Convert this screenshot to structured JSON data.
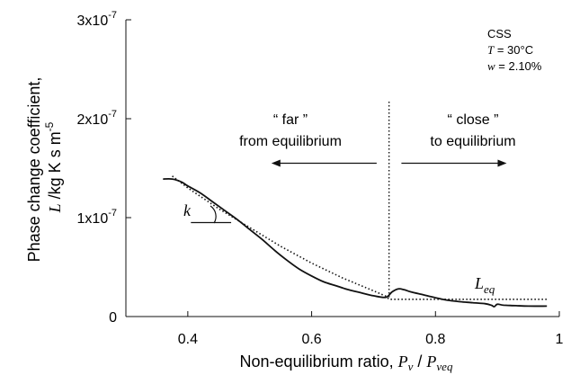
{
  "chart_data": {
    "type": "line",
    "xlabel_prefix": "Non-equilibrium ratio, ",
    "xlabel_num": "P",
    "xlabel_num_sub": "v",
    "xlabel_sep": " / ",
    "xlabel_den": "P",
    "xlabel_den_sub": "veq",
    "ylabel_line1": "Phase change coefficient,",
    "ylabel_line2_var": "L",
    "ylabel_line2_rest": " /kg K s m",
    "ylabel_line2_exp": "-5",
    "xlim": [
      0.3,
      1.0
    ],
    "ylim": [
      0,
      3e-07
    ],
    "x_ticks": [
      0.4,
      0.6,
      0.8,
      1.0
    ],
    "x_tick_labels": [
      "0.4",
      "0.6",
      "0.8",
      "1"
    ],
    "y_ticks": [
      0,
      1e-07,
      2e-07,
      3e-07
    ],
    "y_tick_labels": [
      {
        "base": "0",
        "exp": ""
      },
      {
        "base": "1x10",
        "exp": "-7"
      },
      {
        "base": "2x10",
        "exp": "-7"
      },
      {
        "base": "3x10",
        "exp": "-7"
      }
    ],
    "series": [
      {
        "style": "solid",
        "x": [
          0.36,
          0.375,
          0.39,
          0.4,
          0.42,
          0.44,
          0.46,
          0.48,
          0.5,
          0.52,
          0.54,
          0.56,
          0.58,
          0.6,
          0.62,
          0.64,
          0.66,
          0.68,
          0.7,
          0.72,
          0.73,
          0.74,
          0.75,
          0.76,
          0.78,
          0.8,
          0.82,
          0.84,
          0.86,
          0.88,
          0.89,
          0.895,
          0.9,
          0.91,
          0.93,
          0.95,
          0.98
        ],
        "y": [
          1.39e-07,
          1.39e-07,
          1.36e-07,
          1.32e-07,
          1.25e-07,
          1.16e-07,
          1.07e-07,
          9.8e-08,
          8.8e-08,
          7.8e-08,
          6.7e-08,
          5.7e-08,
          4.8e-08,
          4.1e-08,
          3.5e-08,
          3.1e-08,
          2.7e-08,
          2.4e-08,
          2.1e-08,
          1.95e-08,
          2.5e-08,
          2.8e-08,
          2.7e-08,
          2.5e-08,
          2.2e-08,
          1.9e-08,
          1.65e-08,
          1.5e-08,
          1.4e-08,
          1.3e-08,
          1.15e-08,
          1e-08,
          1.25e-08,
          1.15e-08,
          1.1e-08,
          1.05e-08,
          1.05e-08
        ]
      },
      {
        "style": "dotted",
        "x": [
          0.375,
          0.4,
          0.45,
          0.5,
          0.55,
          0.6,
          0.65,
          0.7,
          0.72,
          0.725,
          0.98
        ],
        "y": [
          1.42e-07,
          1.3e-07,
          1.09e-07,
          9e-08,
          7.1e-08,
          5.4e-08,
          3.9e-08,
          2.6e-08,
          2.05e-08,
          1.75e-08,
          1.75e-08
        ]
      }
    ],
    "divider_x": 0.725,
    "legend_box": {
      "title": "CSS",
      "temp_var": "T",
      "temp_value": " = 30°C",
      "w_var": "w",
      "w_value": " = 2.10%"
    },
    "annotations": {
      "far_line1": "“ far ”",
      "far_line2": "from equilibrium",
      "close_line1": "“ close ”",
      "close_line2": "to equilibrium",
      "slope_label": "k",
      "leq_var": "L",
      "leq_sub": "eq"
    },
    "arrow_far": {
      "from_x": 0.705,
      "to_x": 0.535,
      "y": 1.55e-07
    },
    "arrow_close": {
      "from_x": 0.745,
      "to_x": 0.915,
      "y": 1.55e-07
    },
    "k_tangent": {
      "from_x": 0.405,
      "to_x": 0.47,
      "y": 9.5e-08
    },
    "grid": false,
    "legend": "top-right",
    "colors": {
      "line": "#111111",
      "axis": "#111111"
    }
  }
}
